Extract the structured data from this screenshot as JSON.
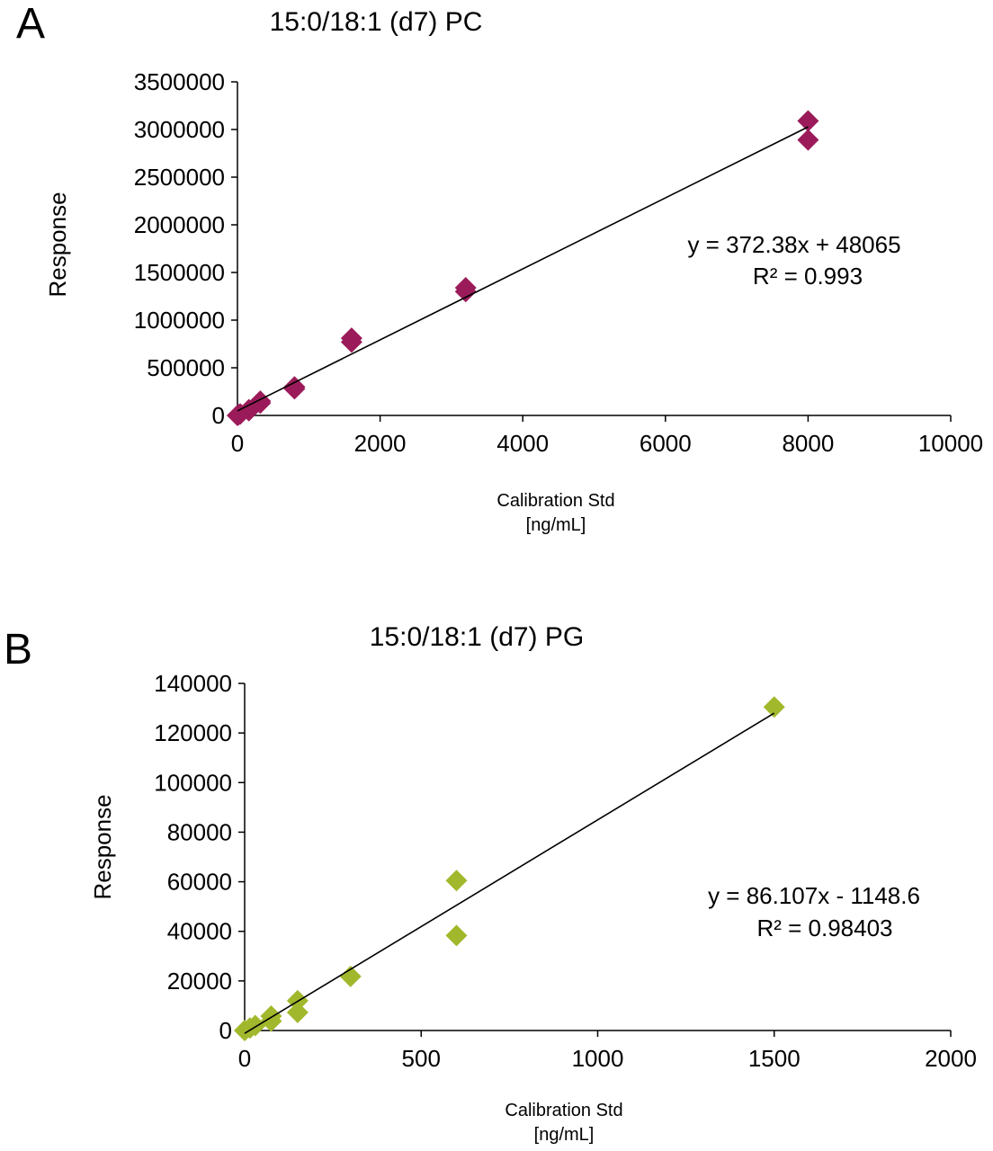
{
  "chart_data": [
    {
      "panel_label": "A",
      "type": "scatter",
      "title": "15:0/18:1 (d7) PC",
      "xlabel_line1": "Calibration Std",
      "xlabel_line2": "[ng/mL]",
      "ylabel": "Response",
      "xlim": [
        0,
        10000
      ],
      "ylim": [
        0,
        3500000
      ],
      "xticks": [
        "0",
        "2000",
        "4000",
        "6000",
        "8000",
        "10000"
      ],
      "yticks": [
        "0",
        "500000",
        "1000000",
        "1500000",
        "2000000",
        "2500000",
        "3000000",
        "3500000"
      ],
      "grid": false,
      "marker_color": "#9b1b5a",
      "points": [
        {
          "x": 0,
          "y": 0
        },
        {
          "x": 20,
          "y": 10000
        },
        {
          "x": 40,
          "y": 15000
        },
        {
          "x": 160,
          "y": 60000
        },
        {
          "x": 160,
          "y": 50000
        },
        {
          "x": 320,
          "y": 150000
        },
        {
          "x": 320,
          "y": 130000
        },
        {
          "x": 800,
          "y": 300000
        },
        {
          "x": 800,
          "y": 280000
        },
        {
          "x": 1600,
          "y": 810000
        },
        {
          "x": 1600,
          "y": 770000
        },
        {
          "x": 3200,
          "y": 1340000
        },
        {
          "x": 3200,
          "y": 1300000
        },
        {
          "x": 8000,
          "y": 3090000
        },
        {
          "x": 8000,
          "y": 2890000
        }
      ],
      "trendline": {
        "slope": 372.38,
        "intercept": 48065,
        "x_range": [
          0,
          8000
        ]
      },
      "equation": "y = 372.38x + 48065",
      "r2": "R² = 0.993"
    },
    {
      "panel_label": "B",
      "type": "scatter",
      "title": "15:0/18:1 (d7) PG",
      "xlabel_line1": "Calibration Std",
      "xlabel_line2": "[ng/mL]",
      "ylabel": "Response",
      "xlim": [
        0,
        2000
      ],
      "ylim": [
        0,
        140000
      ],
      "xticks": [
        "0",
        "500",
        "1000",
        "1500",
        "2000"
      ],
      "yticks": [
        "0",
        "20000",
        "40000",
        "60000",
        "80000",
        "100000",
        "120000",
        "140000"
      ],
      "grid": false,
      "marker_color": "#a2b82c",
      "points": [
        {
          "x": 0,
          "y": 0
        },
        {
          "x": 15,
          "y": 1000
        },
        {
          "x": 30,
          "y": 2000
        },
        {
          "x": 75,
          "y": 5800
        },
        {
          "x": 75,
          "y": 3800
        },
        {
          "x": 150,
          "y": 12000
        },
        {
          "x": 150,
          "y": 7300
        },
        {
          "x": 300,
          "y": 21800
        },
        {
          "x": 600,
          "y": 60500
        },
        {
          "x": 600,
          "y": 38300
        },
        {
          "x": 1500,
          "y": 130500
        }
      ],
      "trendline": {
        "slope": 86.107,
        "intercept": -1148.6,
        "x_range": [
          0,
          1500
        ]
      },
      "equation": "y = 86.107x - 1148.6",
      "r2": "R² = 0.98403"
    }
  ]
}
